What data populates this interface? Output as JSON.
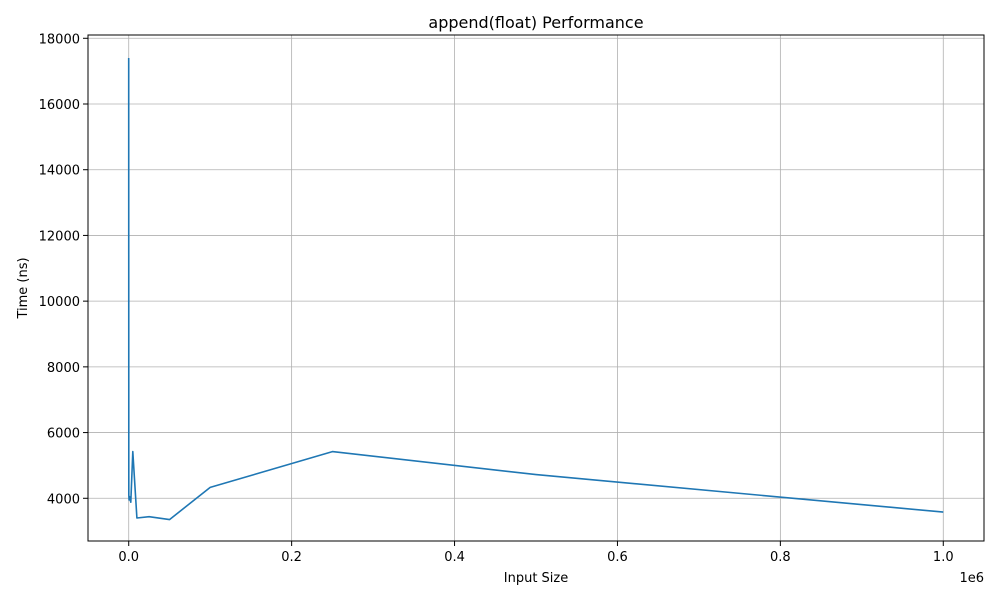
{
  "chart_data": {
    "type": "line",
    "title": "append(float) Performance",
    "xlabel": "Input Size",
    "ylabel": "Time (ns)",
    "x_offset_label": "1e6",
    "xlim": [
      -0.05,
      1.05
    ],
    "ylim": [
      2700,
      18100
    ],
    "xticks": [
      0.0,
      0.2,
      0.4,
      0.6,
      0.8,
      1.0
    ],
    "xtick_labels": [
      "0.0",
      "0.2",
      "0.4",
      "0.6",
      "0.8",
      "1.0"
    ],
    "yticks": [
      4000,
      6000,
      8000,
      10000,
      12000,
      14000,
      16000,
      18000
    ],
    "ytick_labels": [
      "4000",
      "6000",
      "8000",
      "10000",
      "12000",
      "14000",
      "16000",
      "18000"
    ],
    "grid": true,
    "series": [
      {
        "color": "#1f77b4",
        "x": [
          1e-05,
          0.0001,
          0.0005,
          0.001,
          0.0025,
          0.005,
          0.01,
          0.025,
          0.05,
          0.1,
          0.25,
          0.5,
          1.0
        ],
        "y": [
          17400,
          4100,
          3950,
          4050,
          3880,
          5420,
          3400,
          3440,
          3350,
          4330,
          5420,
          4720,
          3580
        ]
      }
    ]
  }
}
